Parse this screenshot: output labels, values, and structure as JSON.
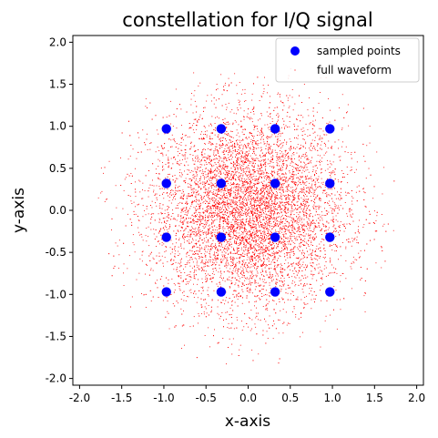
{
  "chart_data": {
    "type": "scatter",
    "title": "constellation for I/Q signal",
    "xlabel": "x-axis",
    "ylabel": "y-axis",
    "xlim": [
      -2.08,
      2.08
    ],
    "ylim": [
      -2.08,
      2.08
    ],
    "xticks": [
      "-2.0",
      "-1.5",
      "-1.0",
      "-0.5",
      "0.0",
      "0.5",
      "1.0",
      "1.5",
      "2.0"
    ],
    "yticks": [
      "-2.0",
      "-1.5",
      "-1.0",
      "-0.5",
      "0.0",
      "0.5",
      "1.0",
      "1.5",
      "2.0"
    ],
    "grid": false,
    "legend_position": "upper-right",
    "series": [
      {
        "name": "sampled points",
        "marker": "circle",
        "color": "#0000ff",
        "x": [
          -0.97,
          -0.32,
          0.32,
          0.97,
          -0.97,
          -0.32,
          0.32,
          0.97,
          -0.97,
          -0.32,
          0.32,
          0.97,
          -0.97,
          -0.32,
          0.32,
          0.97
        ],
        "y": [
          0.97,
          0.97,
          0.97,
          0.97,
          0.32,
          0.32,
          0.32,
          0.32,
          -0.32,
          -0.32,
          -0.32,
          -0.32,
          -0.97,
          -0.97,
          -0.97,
          -0.97
        ]
      },
      {
        "name": "full waveform",
        "marker": "pixel",
        "color": "#ff0000",
        "distribution": "dense random cloud centered at (0, 0), spread to about radius 1.8"
      }
    ]
  }
}
